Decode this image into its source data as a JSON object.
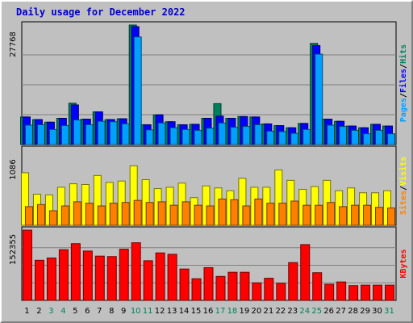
{
  "chart_data": {
    "type": "bar",
    "title": "Daily usage for December 2022",
    "categories": [
      "1",
      "2",
      "3",
      "4",
      "5",
      "6",
      "7",
      "8",
      "9",
      "10",
      "11",
      "12",
      "13",
      "14",
      "15",
      "16",
      "17",
      "18",
      "19",
      "20",
      "21",
      "22",
      "23",
      "24",
      "25",
      "26",
      "27",
      "28",
      "29",
      "30",
      "31"
    ],
    "weekend_days": [
      "3",
      "4",
      "10",
      "11",
      "17",
      "18",
      "24",
      "25",
      "31"
    ],
    "panels": [
      {
        "id": "top",
        "ymax": 27768,
        "ymax_label": "27768",
        "right_labels": [
          "Pages",
          "Files",
          "Hits"
        ],
        "series": [
          {
            "name": "Hits",
            "color": "#00805c",
            "values": [
              6400,
              5800,
              5200,
              6100,
              9600,
              5900,
              7600,
              5800,
              6000,
              27768,
              4600,
              6900,
              5300,
              4600,
              4700,
              6100,
              9500,
              6100,
              6500,
              6400,
              4800,
              4400,
              3900,
              4900,
              23500,
              5900,
              5400,
              4300,
              3900,
              4700,
              4300
            ]
          },
          {
            "name": "Files",
            "color": "#0000ff",
            "values": [
              6400,
              5800,
              5200,
              6100,
              9200,
              5900,
              7600,
              5800,
              6000,
              27400,
              4600,
              6900,
              5300,
              4600,
              4700,
              6100,
              6600,
              6100,
              6500,
              6400,
              4800,
              4400,
              3900,
              4900,
              23000,
              5900,
              5400,
              4300,
              3900,
              4700,
              4300
            ]
          },
          {
            "name": "Pages",
            "color": "#00a0ff",
            "values": [
              4500,
              4600,
              3500,
              4400,
              5700,
              4600,
              5400,
              5300,
              4800,
              25000,
              3400,
              5000,
              3900,
              3500,
              3300,
              3800,
              5000,
              4000,
              4200,
              4600,
              3100,
              3000,
              2600,
              3500,
              21000,
              4500,
              4200,
              3300,
              2500,
              3300,
              2500
            ]
          }
        ]
      },
      {
        "id": "mid",
        "ymax": 1086,
        "ymax_label": "1086",
        "right_labels": [
          "Sites",
          "Visits"
        ],
        "series": [
          {
            "name": "Visits",
            "color": "#ffff00",
            "values": [
              760,
              450,
              440,
              550,
              600,
              590,
              720,
              620,
              640,
              860,
              660,
              530,
              550,
              610,
              400,
              570,
              540,
              500,
              680,
              550,
              550,
              800,
              650,
              520,
              560,
              650,
              500,
              540,
              470,
              470,
              500
            ]
          },
          {
            "name": "Sites",
            "color": "#ff8000",
            "values": [
              270,
              300,
              210,
              280,
              340,
              320,
              280,
              320,
              330,
              360,
              330,
              340,
              290,
              340,
              290,
              280,
              380,
              370,
              280,
              380,
              320,
              320,
              350,
              290,
              290,
              330,
              270,
              290,
              290,
              260,
              250
            ]
          }
        ]
      },
      {
        "id": "bot",
        "ymax": 152355,
        "ymax_label": "152355",
        "right_labels": [
          "KBytes"
        ],
        "series": [
          {
            "name": "KBytes",
            "color": "#ff0000",
            "values": [
              152355,
              87000,
              92000,
              110000,
              123000,
              107000,
              96000,
              95000,
              111000,
              125000,
              86000,
              103000,
              100000,
              68000,
              47000,
              71000,
              52000,
              61000,
              61000,
              38000,
              48000,
              37000,
              82000,
              121000,
              60000,
              35000,
              40000,
              32000,
              33000,
              33000,
              33000
            ]
          }
        ]
      }
    ]
  }
}
